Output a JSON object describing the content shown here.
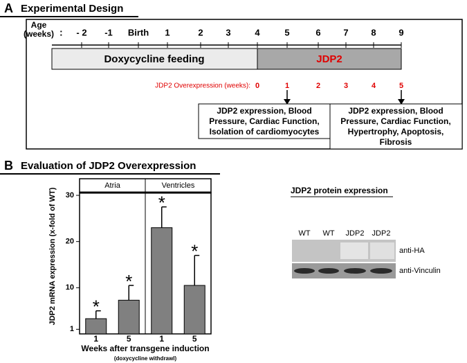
{
  "panel_a": {
    "label": "A",
    "title": "Experimental Design",
    "age_label_lines": [
      "Age",
      "(weeks)"
    ],
    "age_colon": ":",
    "ages": [
      "- 2",
      "-1",
      "Birth",
      "1",
      "2",
      "3",
      "4",
      "5",
      "6",
      "7",
      "8",
      "9"
    ],
    "phases": [
      "Doxycycline feeding",
      "JDP2"
    ],
    "overexpression_label": "JDP2 Overexpression (weeks):",
    "overexpression_weeks": [
      "0",
      "1",
      "2",
      "3",
      "4",
      "5"
    ],
    "outcomes": [
      [
        "JDP2 expression, Blood",
        "Pressure, Cardiac Function,",
        "Isolation of cardiomyocytes"
      ],
      [
        "JDP2 expression, Blood",
        "Pressure, Cardiac Function,",
        "Hypertrophy, Apoptosis,",
        "Fibrosis"
      ]
    ]
  },
  "panel_b": {
    "label": "B",
    "title": "Evaluation of JDP2 Overexpression",
    "blot": {
      "title": "JDP2 protein expression",
      "lanes": [
        "WT",
        "WT",
        "JDP2",
        "JDP2"
      ],
      "rows": [
        "anti-HA",
        "anti-Vinculin"
      ]
    }
  },
  "chart_data": {
    "type": "bar",
    "groups": [
      "Atria",
      "Ventricles"
    ],
    "categories": [
      "1",
      "5",
      "1",
      "5"
    ],
    "values": [
      3.3,
      7.3,
      23,
      10.5
    ],
    "errors": [
      1.7,
      3.2,
      4.5,
      6.5
    ],
    "annotations": [
      "*",
      "*",
      "*",
      "*"
    ],
    "color": "#808080",
    "ylabel": "JDP2 mRNA expression (x-fold of WT)",
    "xlabel": "Weeks after transgene induction",
    "xlabel_note": "(doxycycline withdrawl)",
    "ylim": [
      0,
      30
    ],
    "yticks": [
      1,
      10,
      20,
      30
    ]
  }
}
